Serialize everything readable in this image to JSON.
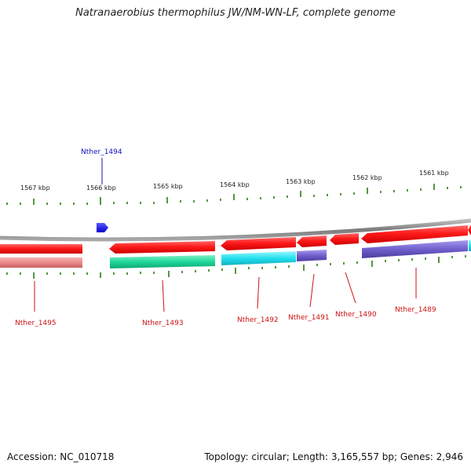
{
  "title": "Natranaerobius thermophilus JW/NM-WN-LF, complete genome",
  "accession_text": "Accession: NC_010718",
  "summary_text": "Topology: circular; Length: 3,165,557 bp; Genes: 2,946",
  "scale": {
    "unit": "kbp",
    "tick_labels": [
      "1567 kbp",
      "1566 kbp",
      "1565 kbp",
      "1564 kbp",
      "1563 kbp",
      "1562 kbp",
      "1561 kbp"
    ]
  },
  "genes": [
    {
      "id": "Nther_1495",
      "strand": "-",
      "color": "#dd3333"
    },
    {
      "id": "Nther_1494",
      "strand": "+",
      "color": "#1a1aee"
    },
    {
      "id": "Nther_1493",
      "strand": "-",
      "color": "#dd3333"
    },
    {
      "id": "Nther_1492",
      "strand": "-",
      "color": "#dd3333"
    },
    {
      "id": "Nther_1491",
      "strand": "-",
      "color": "#dd3333"
    },
    {
      "id": "Nther_1490",
      "strand": "-",
      "color": "#dd3333"
    },
    {
      "id": "Nther_1489",
      "strand": "-",
      "color": "#dd3333"
    }
  ],
  "colors": {
    "gene_red": "#ff1a1a",
    "tick_green": "#2a7d12",
    "label_red": "#cc1111",
    "label_blue": "#1010bb",
    "backbone": "#8c8c8c",
    "annotation_pink": "#e98a8a",
    "annotation_green": "#1fd79a",
    "annotation_cyan": "#22e0ee",
    "annotation_purple": "#7060cc"
  }
}
